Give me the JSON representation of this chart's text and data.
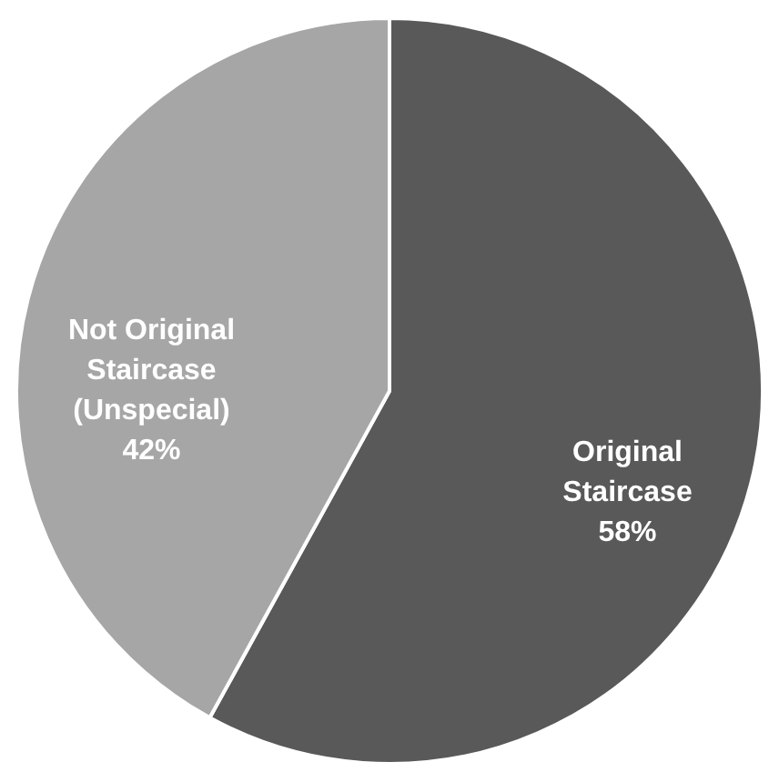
{
  "chart_data": {
    "type": "pie",
    "categories": [
      "Original Staircase",
      "Not Original Staircase (Unspecial)"
    ],
    "values": [
      58,
      42
    ],
    "colors": [
      "#595959",
      "#a6a6a6"
    ],
    "value_labels": [
      "58%",
      "42%"
    ],
    "legend": false
  }
}
